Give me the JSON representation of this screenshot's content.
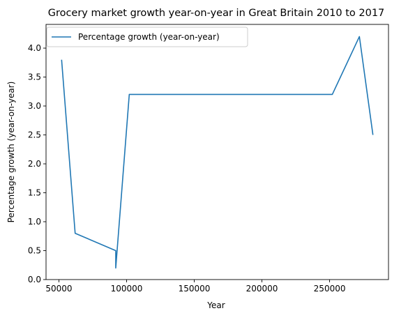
{
  "chart_data": {
    "type": "line",
    "title": "Grocery market growth year-on-year in Great Britain 2010 to 2017",
    "xlabel": "Year",
    "ylabel": "Percentage growth (year-on-year)",
    "xlim": [
      40500,
      293500
    ],
    "ylim": [
      0.0,
      4.41
    ],
    "xticks": [
      50000,
      100000,
      150000,
      200000,
      250000
    ],
    "xtick_labels": [
      "50000",
      "100000",
      "150000",
      "200000",
      "250000"
    ],
    "yticks": [
      0.0,
      0.5,
      1.0,
      1.5,
      2.0,
      2.5,
      3.0,
      3.5,
      4.0
    ],
    "ytick_labels": [
      "0.0",
      "0.5",
      "1.0",
      "1.5",
      "2.0",
      "2.5",
      "3.0",
      "3.5",
      "4.0"
    ],
    "grid": false,
    "legend_position": "top-left",
    "series": [
      {
        "name": "Percentage growth (year-on-year)",
        "color": "#1f77b4",
        "x": [
          52000,
          62000,
          92000,
          92000,
          102000,
          252000,
          272000,
          282000
        ],
        "y": [
          3.8,
          0.8,
          0.5,
          0.2,
          3.2,
          3.2,
          4.2,
          2.5
        ]
      }
    ]
  }
}
